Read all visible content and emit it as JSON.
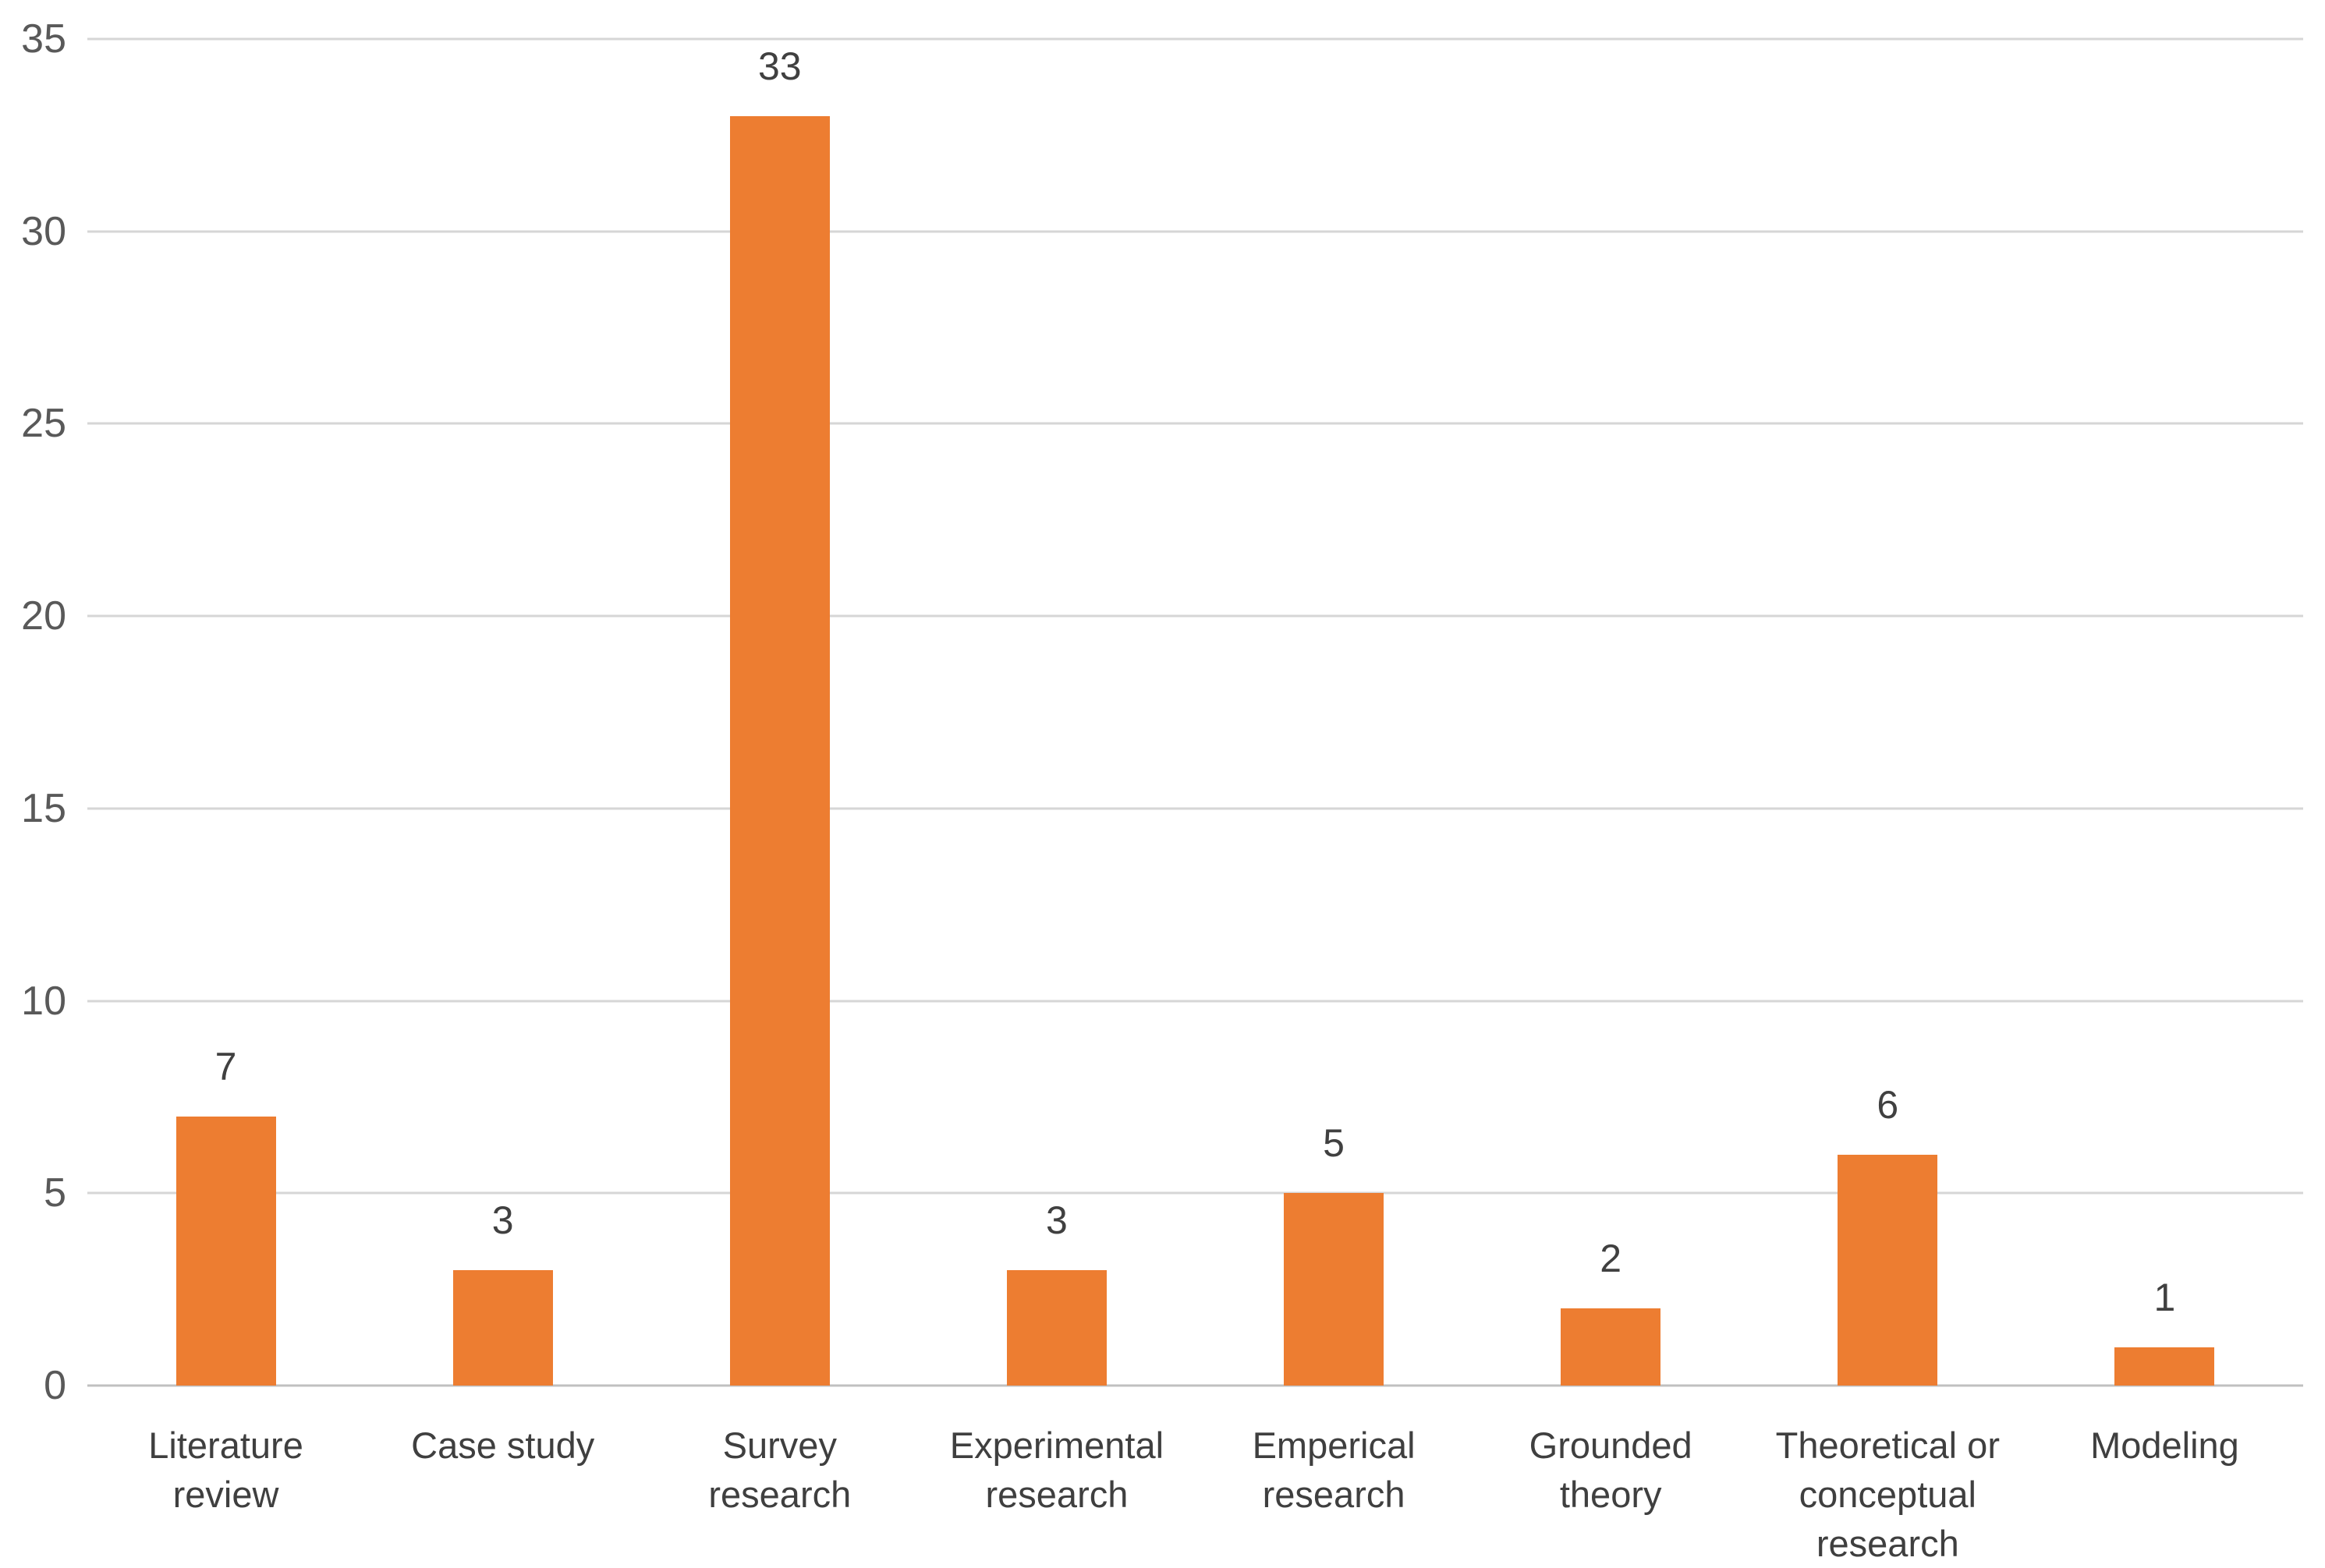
{
  "chart_data": {
    "type": "bar",
    "title": "",
    "xlabel": "",
    "ylabel": "",
    "categories": [
      "Literature review",
      "Case study",
      "Survey research",
      "Experimental research",
      "Emperical research",
      "Grounded theory",
      "Theoretical or conceptual research",
      "Modeling"
    ],
    "values": [
      7,
      3,
      33,
      3,
      5,
      2,
      6,
      1
    ],
    "value_labels": [
      "7",
      "3",
      "33",
      "3",
      "5",
      "2",
      "6",
      "1"
    ],
    "ylim": [
      0,
      35
    ],
    "yticks": [
      "0",
      "5",
      "10",
      "15",
      "20",
      "25",
      "30",
      "35"
    ],
    "grid": "horizontal-only",
    "legend": "none",
    "colors": {
      "bar": "#ED7D31",
      "gridline": "#D6D6D6",
      "baseline": "#C0C0C0",
      "tick_label": "#595959",
      "value_label": "#404040",
      "category_label": "#3F3F3F",
      "background": "#FFFFFF"
    }
  }
}
